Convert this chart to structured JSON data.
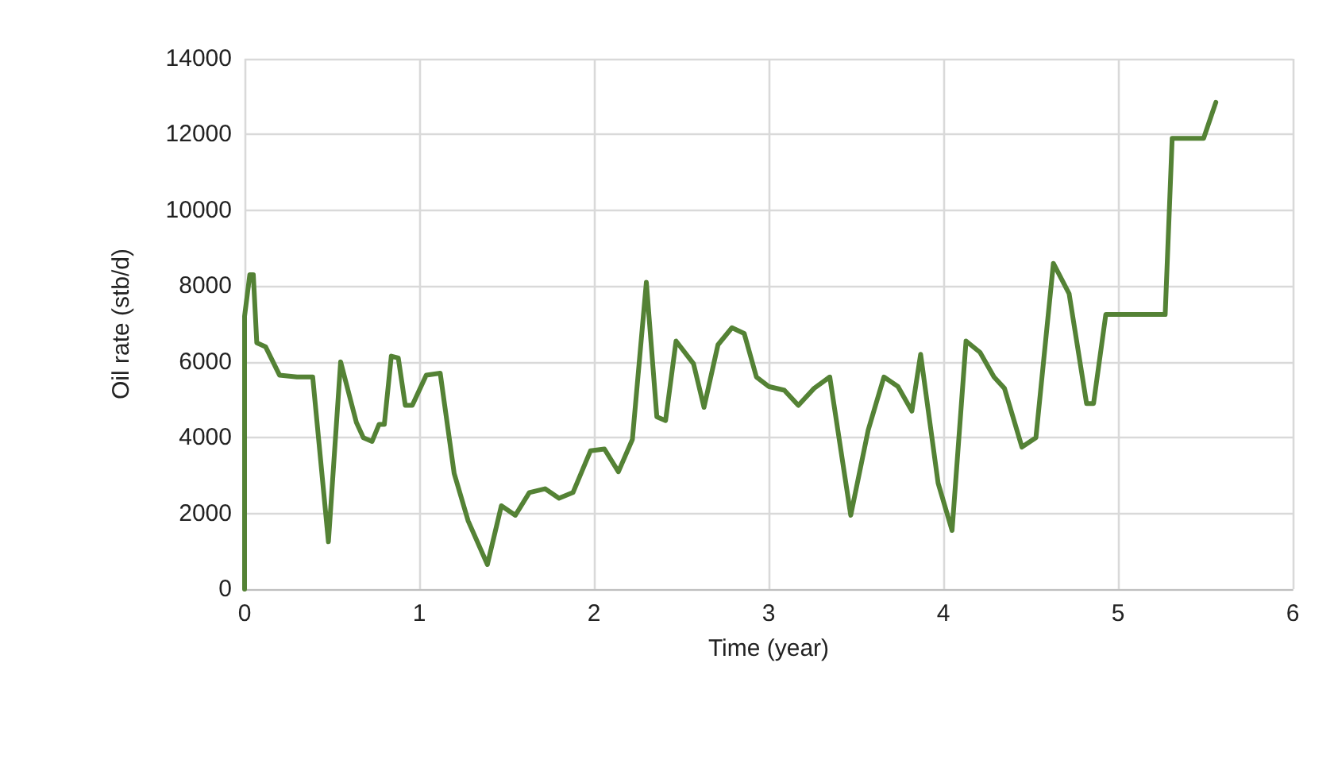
{
  "chart_data": {
    "type": "line",
    "xlabel": "Time (year)",
    "ylabel": "Oil rate (stb/d)",
    "x": [
      0,
      0,
      0.03,
      0.05,
      0.07,
      0.12,
      0.2,
      0.3,
      0.39,
      0.48,
      0.55,
      0.64,
      0.68,
      0.73,
      0.77,
      0.8,
      0.84,
      0.88,
      0.92,
      0.96,
      1.04,
      1.12,
      1.2,
      1.28,
      1.39,
      1.47,
      1.55,
      1.63,
      1.72,
      1.8,
      1.88,
      1.98,
      2.06,
      2.14,
      2.22,
      2.3,
      2.36,
      2.41,
      2.47,
      2.57,
      2.63,
      2.71,
      2.79,
      2.86,
      2.93,
      3.0,
      3.09,
      3.17,
      3.26,
      3.35,
      3.47,
      3.57,
      3.66,
      3.74,
      3.82,
      3.87,
      3.97,
      4.05,
      4.13,
      4.21,
      4.29,
      4.35,
      4.45,
      4.53,
      4.63,
      4.72,
      4.82,
      4.86,
      4.93,
      5.0,
      5.27,
      5.31,
      5.49,
      5.56
    ],
    "series": [
      {
        "color": "#548235",
        "values": [
          0,
          7200,
          8300,
          8300,
          6500,
          6400,
          5650,
          5600,
          5600,
          1250,
          6000,
          4400,
          4000,
          3900,
          4350,
          4350,
          6150,
          6100,
          4850,
          4850,
          5650,
          5700,
          3050,
          1800,
          650,
          2200,
          1950,
          2550,
          2650,
          2400,
          2550,
          3650,
          3700,
          3100,
          3950,
          8100,
          4550,
          4450,
          6550,
          5950,
          4800,
          6450,
          6900,
          6750,
          5600,
          5350,
          5250,
          4850,
          5300,
          5600,
          1950,
          4200,
          5600,
          5350,
          4700,
          6200,
          2800,
          1550,
          6550,
          6250,
          5600,
          5300,
          3750,
          4000,
          8600,
          7800,
          4900,
          4900,
          7250,
          7250,
          7250,
          11900,
          11900,
          12850
        ]
      }
    ],
    "xlim": [
      0,
      6
    ],
    "xticks": [
      0,
      1,
      2,
      3,
      4,
      5,
      6
    ],
    "ylim": [
      0,
      14000
    ],
    "yticks": [
      0,
      2000,
      4000,
      6000,
      8000,
      10000,
      12000,
      14000
    ],
    "grid": true,
    "marker": "none",
    "line_style": "solid"
  }
}
